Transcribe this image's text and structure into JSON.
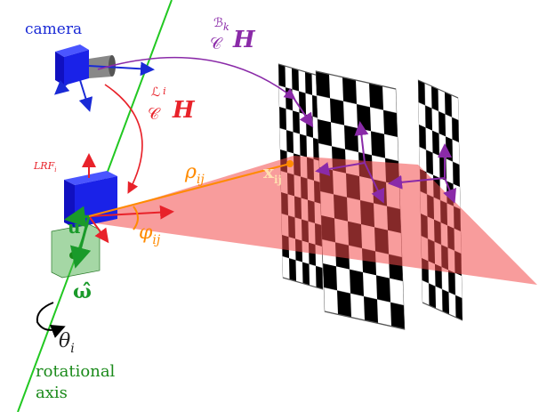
{
  "labels": {
    "camera": "camera",
    "pattern_transform": {
      "superscript": "ℬ",
      "superscript_index": "k",
      "frame": "𝒞",
      "symbol": "H"
    },
    "lrf_transform": {
      "superscript": "ℒ",
      "superscript_index": "i",
      "frame": "𝒞",
      "symbol": "H"
    },
    "lrf": {
      "name": "LRF",
      "index": "i"
    },
    "range": {
      "symbol": "ρ",
      "index": "ij"
    },
    "point": {
      "symbol": "x",
      "index": "ij"
    },
    "angle": {
      "symbol": "φ",
      "index": "ij"
    },
    "direction": "u",
    "axis_vector": "ω̂",
    "rotation": {
      "symbol": "θ",
      "index": "i"
    },
    "axis_label": [
      "rotational",
      "axis"
    ]
  }
}
